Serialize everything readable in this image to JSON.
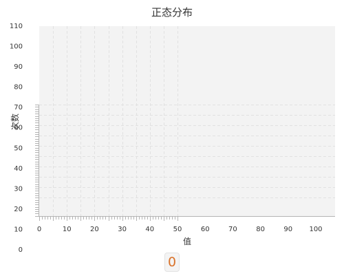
{
  "chart_data": {
    "type": "bar",
    "title": "正态分布",
    "xlabel": "值",
    "ylabel": "次数",
    "x_ticks": [
      "0",
      "10",
      "20",
      "30",
      "40",
      "50",
      "60",
      "70",
      "80",
      "90",
      "100"
    ],
    "y_ticks": [
      "0",
      "10",
      "20",
      "30",
      "40",
      "50",
      "60",
      "70",
      "80",
      "90",
      "100",
      "110"
    ],
    "xlim": [
      0,
      107
    ],
    "ylim": [
      0,
      110
    ],
    "categories": [],
    "values": [],
    "grid": true,
    "legend": "none"
  },
  "counter": {
    "value": "0"
  },
  "colors": {
    "plot_background": "#f3f3f3",
    "grid": "#e1e1e1",
    "axis": "#b3b3b3",
    "text": "#333333",
    "counter_text": "#d9722a"
  }
}
